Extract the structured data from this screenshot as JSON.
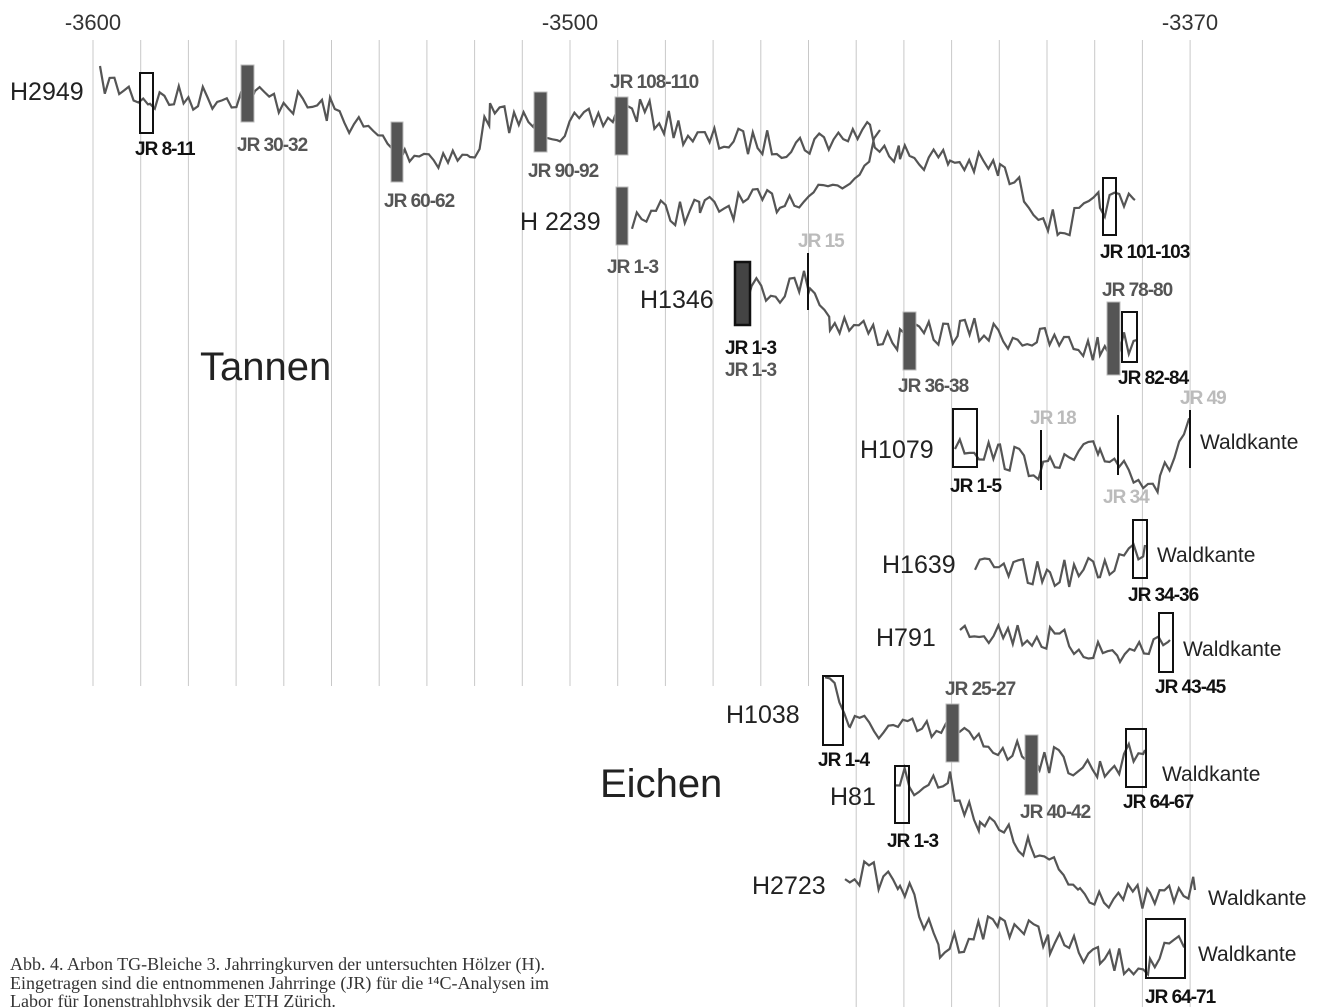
{
  "axis": {
    "labels": [
      "-3600",
      "-3500",
      "-3370"
    ]
  },
  "groups": [
    "Tannen",
    "Eichen"
  ],
  "curves": [
    {
      "label": "H2949",
      "samples": [
        "JR 8-11",
        "JR 30-32",
        "JR 60-62",
        "JR 90-92",
        "JR 108-110",
        "JR 101-103"
      ]
    },
    {
      "label": "H 2239",
      "samples": [
        "JR 1-3"
      ]
    },
    {
      "label": "H1346",
      "samples": [
        "JR 15",
        "JR 1-3",
        "JR 1-3",
        "JR 36-38",
        "JR 78-80",
        "JR 82-84"
      ]
    },
    {
      "label": "H1079",
      "samples": [
        "JR 1-5",
        "JR 18",
        "JR 34",
        "JR 49"
      ],
      "end_label": "Waldkante"
    },
    {
      "label": "H1639",
      "samples": [
        "JR 34-36"
      ],
      "end_label": "Waldkante"
    },
    {
      "label": "H791",
      "samples": [
        "JR 43-45"
      ],
      "end_label": "Waldkante"
    },
    {
      "label": "H1038",
      "samples": [
        "JR 1-4",
        "JR 25-27",
        "JR 64-67"
      ],
      "end_label": "Waldkante"
    },
    {
      "label": "H81",
      "samples": [
        "JR 1-3",
        "JR 40-42"
      ],
      "end_label": "Waldkante"
    },
    {
      "label": "H2723",
      "samples": [
        "JR 64-71"
      ],
      "end_label": "Waldkante"
    }
  ],
  "caption": [
    "Abb. 4. Arbon TG-Bleiche 3. Jahrringkurven der untersuchten Hölzer (H).",
    "Eingetragen sind die entnommenen Jahrringe (JR) für die ¹⁴C-Analysen im",
    "Labor für Ionenstrahlphysik der ETH Zürich."
  ]
}
